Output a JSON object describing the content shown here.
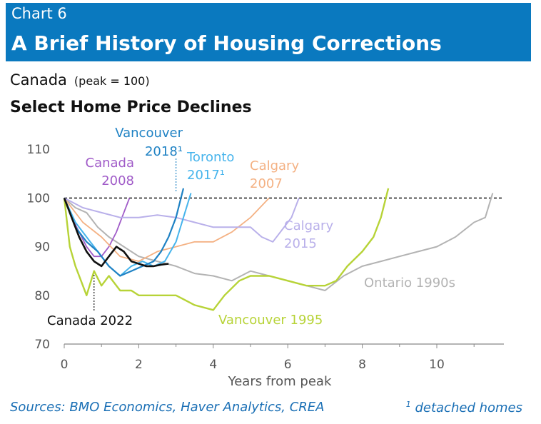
{
  "header": {
    "chart_number": "Chart 6",
    "title": "A Brief History of Housing Corrections"
  },
  "region": "Canada",
  "unit": "(peak = 100)",
  "subtitle": "Select Home Price Declines",
  "footer": {
    "sources": "Sources: BMO Economics, Haver Analytics, CREA",
    "note_mark": "1",
    "note_text": " detached homes"
  },
  "chart_data": {
    "type": "line",
    "title": "Select Home Price Declines",
    "xlabel": "Years from peak",
    "ylabel": "",
    "xlim": [
      0,
      11.8
    ],
    "ylim": [
      70,
      112
    ],
    "xticks": [
      0,
      2,
      4,
      6,
      8,
      10
    ],
    "yticks": [
      70,
      80,
      90,
      100,
      110
    ],
    "reference_line": 100,
    "grid": false,
    "series": [
      {
        "name": "Ontario 1990s",
        "label_lines": [
          "Ontario 1990s"
        ],
        "color": "#b3b3b3",
        "x": [
          0,
          0.3,
          0.6,
          0.9,
          1.2,
          1.6,
          2.0,
          2.5,
          3.0,
          3.5,
          4.0,
          4.5,
          5.0,
          5.5,
          6.0,
          6.5,
          7.0,
          7.5,
          8.0,
          8.5,
          9.0,
          9.5,
          10.0,
          10.5,
          11.0,
          11.3,
          11.5
        ],
        "y": [
          100,
          98,
          97,
          94,
          92,
          90,
          88,
          87,
          86,
          84.5,
          84,
          83,
          85,
          84,
          83,
          82,
          81,
          84,
          86,
          87,
          88,
          89,
          90,
          92,
          95,
          96,
          101
        ]
      },
      {
        "name": "Vancouver 1995",
        "label_lines": [
          "Vancouver 1995"
        ],
        "color": "#b7d337",
        "x": [
          0,
          0.15,
          0.3,
          0.45,
          0.6,
          0.8,
          1.0,
          1.2,
          1.5,
          1.8,
          2.0,
          2.5,
          3.0,
          3.5,
          4.0,
          4.3,
          4.7,
          5.0,
          5.5,
          6.0,
          6.5,
          7.0,
          7.3,
          7.6,
          8.0,
          8.3,
          8.5,
          8.7
        ],
        "y": [
          100,
          90,
          86,
          83,
          80,
          85,
          82,
          84,
          81,
          81,
          80,
          80,
          80,
          78,
          77,
          80,
          83,
          84,
          84,
          83,
          82,
          82,
          83,
          86,
          89,
          92,
          96,
          102
        ]
      },
      {
        "name": "Canada 2008",
        "label_lines": [
          "Canada",
          "2008"
        ],
        "color": "#a05bc8",
        "x": [
          0,
          0.2,
          0.4,
          0.6,
          0.8,
          1.0,
          1.2,
          1.4,
          1.6,
          1.75
        ],
        "y": [
          100,
          96,
          93,
          90,
          88,
          88,
          90,
          93,
          97,
          100
        ]
      },
      {
        "name": "Calgary 2007",
        "label_lines": [
          "Calgary",
          "2007"
        ],
        "color": "#f4b183",
        "x": [
          0,
          0.5,
          1.0,
          1.5,
          2.0,
          2.5,
          3.0,
          3.5,
          4.0,
          4.5,
          5.0,
          5.5
        ],
        "y": [
          100,
          95,
          92,
          88,
          87,
          89,
          90,
          91,
          91,
          93,
          96,
          100
        ]
      },
      {
        "name": "Calgary 2015",
        "label_lines": [
          "Calgary",
          "2015"
        ],
        "color": "#b9b0ea",
        "x": [
          0,
          0.5,
          1.0,
          1.5,
          2.0,
          2.5,
          3.0,
          3.5,
          4.0,
          4.5,
          5.0,
          5.3,
          5.6,
          5.9,
          6.1,
          6.3
        ],
        "y": [
          100,
          98,
          97,
          96,
          96,
          96.5,
          96,
          95,
          94,
          94,
          94,
          92,
          91,
          94,
          96,
          100
        ]
      },
      {
        "name": "Toronto 2017",
        "label_lines": [
          "Toronto",
          "2017¹"
        ],
        "color": "#46b4ec",
        "x": [
          0,
          0.3,
          0.6,
          0.9,
          1.2,
          1.5,
          1.8,
          2.1,
          2.4,
          2.7,
          3.0,
          3.2,
          3.4
        ],
        "y": [
          100,
          95,
          92,
          89,
          86,
          84,
          86,
          87,
          86,
          87,
          91,
          96,
          101
        ]
      },
      {
        "name": "Vancouver 2018",
        "label_lines": [
          "Vancouver",
          "2018¹"
        ],
        "color": "#1f82c4",
        "x": [
          0,
          0.3,
          0.6,
          0.9,
          1.2,
          1.5,
          1.8,
          2.1,
          2.4,
          2.6,
          2.8,
          3.0,
          3.2
        ],
        "y": [
          100,
          94,
          91,
          89,
          86,
          84,
          85,
          86,
          87,
          89,
          92,
          96,
          102
        ]
      },
      {
        "name": "Canada 2022",
        "label_lines": [
          "Canada 2022"
        ],
        "color": "#111111",
        "x": [
          0,
          0.2,
          0.4,
          0.6,
          0.8,
          1.0,
          1.2,
          1.4,
          1.6,
          1.8,
          2.0,
          2.2,
          2.4,
          2.6,
          2.8
        ],
        "y": [
          100,
          96,
          92,
          89,
          87,
          86,
          88,
          90,
          89,
          87,
          86.5,
          86,
          86,
          86.3,
          86.5
        ]
      }
    ]
  }
}
